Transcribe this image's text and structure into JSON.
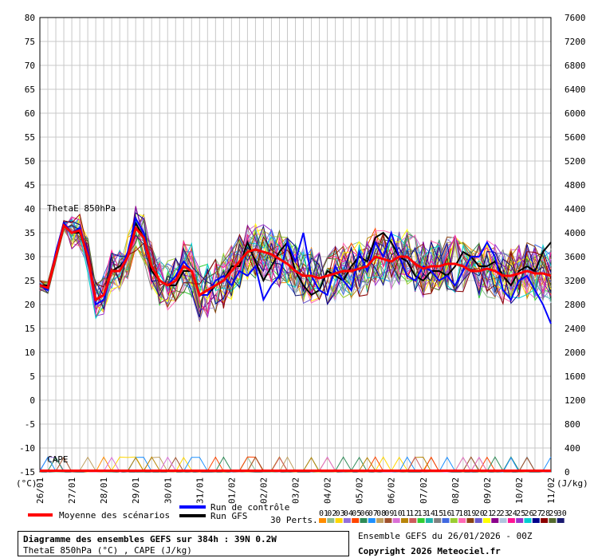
{
  "chart_data": {
    "type": "line",
    "left_axis": {
      "unit": "(°C)",
      "ylim": [
        -15,
        80
      ],
      "ticks": [
        80,
        75,
        70,
        65,
        60,
        55,
        50,
        45,
        40,
        35,
        30,
        25,
        20,
        15,
        10,
        5,
        0,
        -5,
        -10,
        -15
      ]
    },
    "right_axis": {
      "unit": "(J/kg)",
      "ylim": [
        0,
        7600
      ],
      "ticks": [
        7600,
        7200,
        6800,
        6400,
        6000,
        5600,
        5200,
        4800,
        4400,
        4000,
        3600,
        3200,
        2800,
        2400,
        2000,
        1600,
        1200,
        800,
        400,
        0
      ]
    },
    "x_dates": [
      "26/01",
      "27/01",
      "28/01",
      "29/01",
      "30/01",
      "31/01",
      "01/02",
      "02/02",
      "03/02",
      "04/02",
      "05/02",
      "06/02",
      "07/02",
      "08/02",
      "09/02",
      "10/02",
      "11/02"
    ],
    "x_range_hours": [
      0,
      384
    ],
    "series_labels": {
      "theta": "ThetaE 850hPa",
      "cape": "CAPE"
    },
    "grid": true,
    "mean_theta": [
      [
        0,
        24
      ],
      [
        6,
        23.5
      ],
      [
        12,
        30
      ],
      [
        18,
        36.5
      ],
      [
        24,
        35
      ],
      [
        30,
        35.5
      ],
      [
        36,
        30
      ],
      [
        42,
        21
      ],
      [
        48,
        22
      ],
      [
        54,
        27
      ],
      [
        60,
        27
      ],
      [
        66,
        30
      ],
      [
        72,
        36
      ],
      [
        78,
        34
      ],
      [
        84,
        28
      ],
      [
        90,
        25
      ],
      [
        96,
        24
      ],
      [
        102,
        25
      ],
      [
        108,
        28
      ],
      [
        114,
        27
      ],
      [
        120,
        22
      ],
      [
        126,
        23
      ],
      [
        132,
        24
      ],
      [
        138,
        25
      ],
      [
        144,
        27
      ],
      [
        150,
        29
      ],
      [
        156,
        31
      ],
      [
        162,
        31.5
      ],
      [
        168,
        31
      ],
      [
        174,
        30.5
      ],
      [
        180,
        29.5
      ],
      [
        186,
        28.5
      ],
      [
        192,
        27
      ],
      [
        198,
        26
      ],
      [
        204,
        26
      ],
      [
        210,
        25.5
      ],
      [
        216,
        26
      ],
      [
        222,
        26.5
      ],
      [
        228,
        27
      ],
      [
        234,
        27
      ],
      [
        240,
        27.5
      ],
      [
        246,
        28
      ],
      [
        252,
        30
      ],
      [
        258,
        29.5
      ],
      [
        264,
        29
      ],
      [
        270,
        30
      ],
      [
        276,
        30
      ],
      [
        282,
        28.5
      ],
      [
        288,
        27.5
      ],
      [
        294,
        28
      ],
      [
        300,
        28
      ],
      [
        306,
        28.5
      ],
      [
        312,
        28.5
      ],
      [
        318,
        28
      ],
      [
        324,
        27
      ],
      [
        330,
        27
      ],
      [
        336,
        27.5
      ],
      [
        342,
        27
      ],
      [
        348,
        26
      ],
      [
        354,
        26
      ],
      [
        360,
        26.5
      ],
      [
        366,
        27
      ],
      [
        372,
        26.5
      ],
      [
        378,
        26.5
      ],
      [
        384,
        26
      ]
    ],
    "control_theta": [
      [
        0,
        24
      ],
      [
        6,
        23
      ],
      [
        12,
        31
      ],
      [
        18,
        37
      ],
      [
        24,
        35
      ],
      [
        30,
        36
      ],
      [
        36,
        31
      ],
      [
        42,
        20
      ],
      [
        48,
        21
      ],
      [
        54,
        27
      ],
      [
        60,
        27
      ],
      [
        66,
        31
      ],
      [
        72,
        38
      ],
      [
        78,
        35
      ],
      [
        84,
        28
      ],
      [
        90,
        25
      ],
      [
        96,
        24
      ],
      [
        102,
        26
      ],
      [
        108,
        29
      ],
      [
        114,
        27
      ],
      [
        120,
        22
      ],
      [
        126,
        22
      ],
      [
        132,
        25
      ],
      [
        138,
        26
      ],
      [
        144,
        24
      ],
      [
        150,
        27
      ],
      [
        156,
        26
      ],
      [
        162,
        28
      ],
      [
        168,
        21
      ],
      [
        174,
        24
      ],
      [
        180,
        26
      ],
      [
        186,
        33
      ],
      [
        192,
        29
      ],
      [
        198,
        35
      ],
      [
        204,
        26
      ],
      [
        210,
        23
      ],
      [
        216,
        22
      ],
      [
        222,
        28
      ],
      [
        228,
        25
      ],
      [
        234,
        23
      ],
      [
        240,
        31
      ],
      [
        246,
        27
      ],
      [
        252,
        33
      ],
      [
        258,
        30
      ],
      [
        264,
        35
      ],
      [
        270,
        30
      ],
      [
        276,
        26
      ],
      [
        282,
        25
      ],
      [
        288,
        28
      ],
      [
        294,
        27
      ],
      [
        300,
        25
      ],
      [
        306,
        26
      ],
      [
        312,
        24
      ],
      [
        318,
        27
      ],
      [
        324,
        30
      ],
      [
        330,
        30
      ],
      [
        336,
        33
      ],
      [
        342,
        30
      ],
      [
        348,
        23
      ],
      [
        354,
        21
      ],
      [
        360,
        25
      ],
      [
        366,
        26
      ],
      [
        372,
        23
      ],
      [
        378,
        20
      ],
      [
        384,
        16
      ]
    ],
    "gfs_theta": [
      [
        0,
        24
      ],
      [
        6,
        24
      ],
      [
        12,
        30
      ],
      [
        18,
        37
      ],
      [
        24,
        35
      ],
      [
        30,
        35
      ],
      [
        36,
        30
      ],
      [
        42,
        21
      ],
      [
        48,
        22
      ],
      [
        54,
        27
      ],
      [
        60,
        28
      ],
      [
        66,
        30
      ],
      [
        72,
        37
      ],
      [
        78,
        34
      ],
      [
        84,
        27
      ],
      [
        90,
        25
      ],
      [
        96,
        24
      ],
      [
        102,
        24
      ],
      [
        108,
        27
      ],
      [
        114,
        27
      ],
      [
        120,
        22
      ],
      [
        126,
        22
      ],
      [
        132,
        24
      ],
      [
        138,
        25
      ],
      [
        144,
        28
      ],
      [
        150,
        28
      ],
      [
        156,
        33
      ],
      [
        162,
        29
      ],
      [
        168,
        25
      ],
      [
        174,
        28
      ],
      [
        180,
        31
      ],
      [
        186,
        33
      ],
      [
        192,
        27
      ],
      [
        198,
        24
      ],
      [
        204,
        22
      ],
      [
        210,
        23
      ],
      [
        216,
        27
      ],
      [
        222,
        26
      ],
      [
        228,
        25
      ],
      [
        234,
        28
      ],
      [
        240,
        30
      ],
      [
        246,
        29
      ],
      [
        252,
        34
      ],
      [
        258,
        35
      ],
      [
        264,
        33
      ],
      [
        270,
        30
      ],
      [
        276,
        29
      ],
      [
        282,
        26
      ],
      [
        288,
        25
      ],
      [
        294,
        27
      ],
      [
        300,
        27
      ],
      [
        306,
        26
      ],
      [
        312,
        28
      ],
      [
        318,
        31
      ],
      [
        324,
        30
      ],
      [
        330,
        28
      ],
      [
        336,
        28
      ],
      [
        342,
        29
      ],
      [
        348,
        26
      ],
      [
        354,
        24
      ],
      [
        360,
        27
      ],
      [
        366,
        28
      ],
      [
        372,
        27
      ],
      [
        378,
        31
      ],
      [
        384,
        33
      ]
    ],
    "perturbation_count": 30,
    "perturbation_labels": [
      "01",
      "02",
      "03",
      "04",
      "05",
      "06",
      "07",
      "08",
      "09",
      "10",
      "11",
      "12",
      "13",
      "14",
      "15",
      "16",
      "17",
      "18",
      "19",
      "20",
      "21",
      "22",
      "23",
      "24",
      "25",
      "26",
      "27",
      "28",
      "29",
      "30"
    ],
    "perturbation_colors": [
      "#ff8c00",
      "#8fbc8f",
      "#ffd700",
      "#9370db",
      "#ff4500",
      "#2e8b57",
      "#1e90ff",
      "#c0a060",
      "#a0522d",
      "#da70d6",
      "#b8860b",
      "#cd5c5c",
      "#32cd32",
      "#20b2aa",
      "#808080",
      "#4169e1",
      "#9acd32",
      "#ff69b4",
      "#8b4513",
      "#6a5acd",
      "#ffff00",
      "#8b008b",
      "#b0c4de",
      "#ff1493",
      "#9932cc",
      "#00ced1",
      "#00008b",
      "#8b0000",
      "#556b2f",
      "#191970"
    ]
  },
  "legend": {
    "mean_label": "Moyenne des scénarios",
    "control_label": "Run de contrôle",
    "gfs_label": "Run GFS",
    "perts_label": "30 Perts."
  },
  "colors": {
    "mean": "#ff0000",
    "control": "#0000ff",
    "gfs": "#000000",
    "grid": "#c8c8c8"
  },
  "footer": {
    "title": "Diagramme des ensembles GEFS sur 384h : 39N 0.2W",
    "subtitle": "ThetaE 850hPa (°C) , CAPE (J/kg)",
    "ensemble": "Ensemble GEFS du 26/01/2026 - 00Z",
    "copyright": "Copyright 2026 Meteociel.fr"
  }
}
